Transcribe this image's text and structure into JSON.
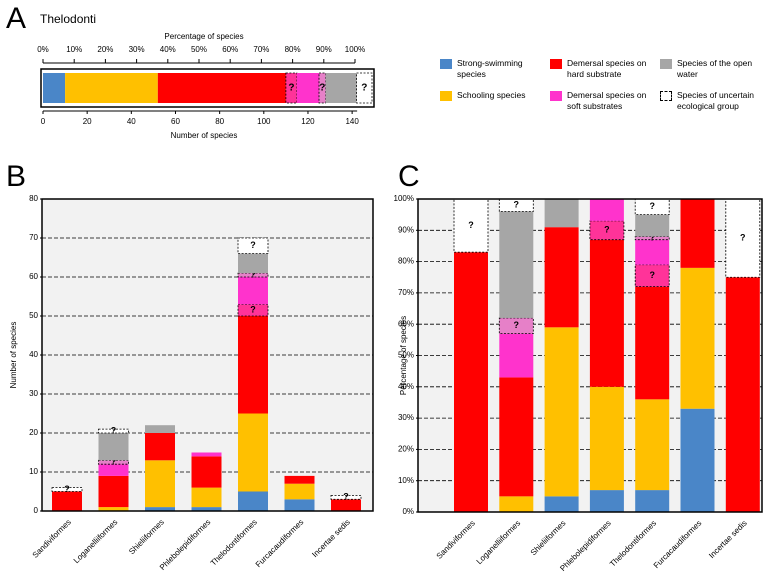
{
  "panel_letters": [
    "A",
    "B",
    "C"
  ],
  "legend": [
    {
      "name": "Strong-swimming species",
      "color": "#4a86c8"
    },
    {
      "name": "Demersal species on hard substrate",
      "color": "#ff0000"
    },
    {
      "name": "Species of the open water",
      "color": "#a6a6a6"
    },
    {
      "name": "Schooling species",
      "color": "#ffc000"
    },
    {
      "name": "Demersal species on soft substrates",
      "color": "#ff33cc"
    },
    {
      "name": "Species of uncertain ecological group",
      "color": "#ffffff",
      "uncertain": true
    }
  ],
  "chart_data": [
    {
      "type": "hbar-stack",
      "title": "Thelodonti",
      "xlabel": "Number of species",
      "x2label": "Percentage of species",
      "xlim": [
        0,
        149
      ],
      "xticks": [
        0,
        20,
        40,
        60,
        80,
        100,
        120,
        140
      ],
      "x2lim": [
        0,
        100
      ],
      "x2ticks": [
        {
          "value": 0,
          "label": "0%"
        },
        {
          "value": 10,
          "label": "10%"
        },
        {
          "value": 20,
          "label": "20%"
        },
        {
          "value": 30,
          "label": "30%"
        },
        {
          "value": 40,
          "label": "40%"
        },
        {
          "value": 50,
          "label": "50%"
        },
        {
          "value": 60,
          "label": "60%"
        },
        {
          "value": 70,
          "label": "70%"
        },
        {
          "value": 80,
          "label": "80%"
        },
        {
          "value": 90,
          "label": "90%"
        },
        {
          "value": 100,
          "label": "100%"
        }
      ],
      "bars": [
        {
          "segments": [
            {
              "value": 10,
              "color": "#4a86c8"
            },
            {
              "value": 42,
              "color": "#ffc000"
            },
            {
              "value": 58,
              "color": "#ff0000"
            },
            {
              "value": 5,
              "color": "#ff3399",
              "uncertain": true,
              "label": "?"
            },
            {
              "value": 10,
              "color": "#ff33cc"
            },
            {
              "value": 3,
              "color": "#e680c8",
              "uncertain": true,
              "label": "?"
            },
            {
              "value": 14,
              "color": "#a6a6a6"
            },
            {
              "value": 7,
              "color": "#ffffff",
              "uncertain": true,
              "label": "?"
            }
          ]
        }
      ]
    },
    {
      "type": "bar-stack",
      "ylabel": "Number of species",
      "ylim": [
        0,
        80
      ],
      "yticks": [
        0,
        10,
        20,
        30,
        40,
        50,
        60,
        70,
        80
      ],
      "grid": true,
      "categories": [
        "Sandiviformes",
        "Loganelliiformes",
        "Shieliiformes",
        "Phlebolepidiformes",
        "Thelodontiformes",
        "Furcacaudiformes",
        "Incertae sedis"
      ],
      "bars": [
        {
          "segments": [
            {
              "value": 5,
              "color": "#ff0000"
            },
            {
              "value": 1,
              "color": "#ffffff",
              "uncertain": true,
              "label": "?"
            }
          ]
        },
        {
          "segments": [
            {
              "value": 1,
              "color": "#ffc000"
            },
            {
              "value": 8,
              "color": "#ff0000"
            },
            {
              "value": 3,
              "color": "#ff33cc"
            },
            {
              "value": 1,
              "color": "#e680c8",
              "uncertain": true,
              "label": "?"
            },
            {
              "value": 7,
              "color": "#a6a6a6"
            },
            {
              "value": 1,
              "color": "#ffffff",
              "uncertain": true,
              "label": "?"
            }
          ]
        },
        {
          "segments": [
            {
              "value": 1,
              "color": "#4a86c8"
            },
            {
              "value": 12,
              "color": "#ffc000"
            },
            {
              "value": 7,
              "color": "#ff0000"
            },
            {
              "value": 2,
              "color": "#a6a6a6"
            }
          ]
        },
        {
          "segments": [
            {
              "value": 1,
              "color": "#4a86c8"
            },
            {
              "value": 5,
              "color": "#ffc000"
            },
            {
              "value": 8,
              "color": "#ff0000"
            },
            {
              "value": 1,
              "color": "#ff33cc"
            }
          ]
        },
        {
          "segments": [
            {
              "value": 5,
              "color": "#4a86c8"
            },
            {
              "value": 20,
              "color": "#ffc000"
            },
            {
              "value": 25,
              "color": "#ff0000"
            },
            {
              "value": 3,
              "color": "#ff3399",
              "uncertain": true,
              "label": "?"
            },
            {
              "value": 7,
              "color": "#ff33cc"
            },
            {
              "value": 1,
              "color": "#e680c8",
              "uncertain": true,
              "label": "?"
            },
            {
              "value": 5,
              "color": "#a6a6a6"
            },
            {
              "value": 4,
              "color": "#ffffff",
              "uncertain": true,
              "label": "?"
            }
          ]
        },
        {
          "segments": [
            {
              "value": 3,
              "color": "#4a86c8"
            },
            {
              "value": 4,
              "color": "#ffc000"
            },
            {
              "value": 2,
              "color": "#ff0000"
            }
          ]
        },
        {
          "segments": [
            {
              "value": 3,
              "color": "#ff0000"
            },
            {
              "value": 1,
              "color": "#ffffff",
              "uncertain": true,
              "label": "?"
            }
          ]
        }
      ]
    },
    {
      "type": "bar-stack",
      "ylabel": "Percentage of species",
      "ylim": [
        0,
        100
      ],
      "yticks": [
        {
          "value": 0,
          "label": "0%"
        },
        {
          "value": 10,
          "label": "10%"
        },
        {
          "value": 20,
          "label": "20%"
        },
        {
          "value": 30,
          "label": "30%"
        },
        {
          "value": 40,
          "label": "40%"
        },
        {
          "value": 50,
          "label": "50%"
        },
        {
          "value": 60,
          "label": "60%"
        },
        {
          "value": 70,
          "label": "70%"
        },
        {
          "value": 80,
          "label": "80%"
        },
        {
          "value": 90,
          "label": "90%"
        },
        {
          "value": 100,
          "label": "100%"
        }
      ],
      "grid": true,
      "categories": [
        "Sandiviformes",
        "Loganelliiformes",
        "Shieliiformes",
        "Phlebolepidiformes",
        "Thelodontiformes",
        "Furcacaudiformes",
        "Incertae sedis"
      ],
      "bars": [
        {
          "segments": [
            {
              "value": 83,
              "color": "#ff0000"
            },
            {
              "value": 17,
              "color": "#ffffff",
              "uncertain": true,
              "label": "?"
            }
          ]
        },
        {
          "segments": [
            {
              "value": 5,
              "color": "#ffc000"
            },
            {
              "value": 38,
              "color": "#ff0000"
            },
            {
              "value": 14,
              "color": "#ff33cc"
            },
            {
              "value": 5,
              "color": "#e680c8",
              "uncertain": true,
              "label": "?"
            },
            {
              "value": 34,
              "color": "#a6a6a6"
            },
            {
              "value": 4,
              "color": "#ffffff",
              "uncertain": true,
              "label": "?"
            }
          ]
        },
        {
          "segments": [
            {
              "value": 5,
              "color": "#4a86c8"
            },
            {
              "value": 54,
              "color": "#ffc000"
            },
            {
              "value": 32,
              "color": "#ff0000"
            },
            {
              "value": 9,
              "color": "#a6a6a6"
            }
          ]
        },
        {
          "segments": [
            {
              "value": 7,
              "color": "#4a86c8"
            },
            {
              "value": 33,
              "color": "#ffc000"
            },
            {
              "value": 47,
              "color": "#ff0000"
            },
            {
              "value": 6,
              "color": "#ff3399",
              "uncertain": true,
              "label": "?"
            },
            {
              "value": 7,
              "color": "#ff33cc"
            }
          ]
        },
        {
          "segments": [
            {
              "value": 7,
              "color": "#4a86c8"
            },
            {
              "value": 29,
              "color": "#ffc000"
            },
            {
              "value": 36,
              "color": "#ff0000"
            },
            {
              "value": 7,
              "color": "#ff3399",
              "uncertain": true,
              "label": "?"
            },
            {
              "value": 8,
              "color": "#ff33cc"
            },
            {
              "value": 1,
              "color": "#e680c8",
              "uncertain": true,
              "label": "?"
            },
            {
              "value": 7,
              "color": "#a6a6a6"
            },
            {
              "value": 5,
              "color": "#ffffff",
              "uncertain": true,
              "label": "?"
            }
          ]
        },
        {
          "segments": [
            {
              "value": 33,
              "color": "#4a86c8"
            },
            {
              "value": 45,
              "color": "#ffc000"
            },
            {
              "value": 22,
              "color": "#ff0000"
            }
          ]
        },
        {
          "segments": [
            {
              "value": 75,
              "color": "#ff0000"
            },
            {
              "value": 25,
              "color": "#ffffff",
              "uncertain": true,
              "label": "?"
            }
          ]
        }
      ]
    }
  ]
}
